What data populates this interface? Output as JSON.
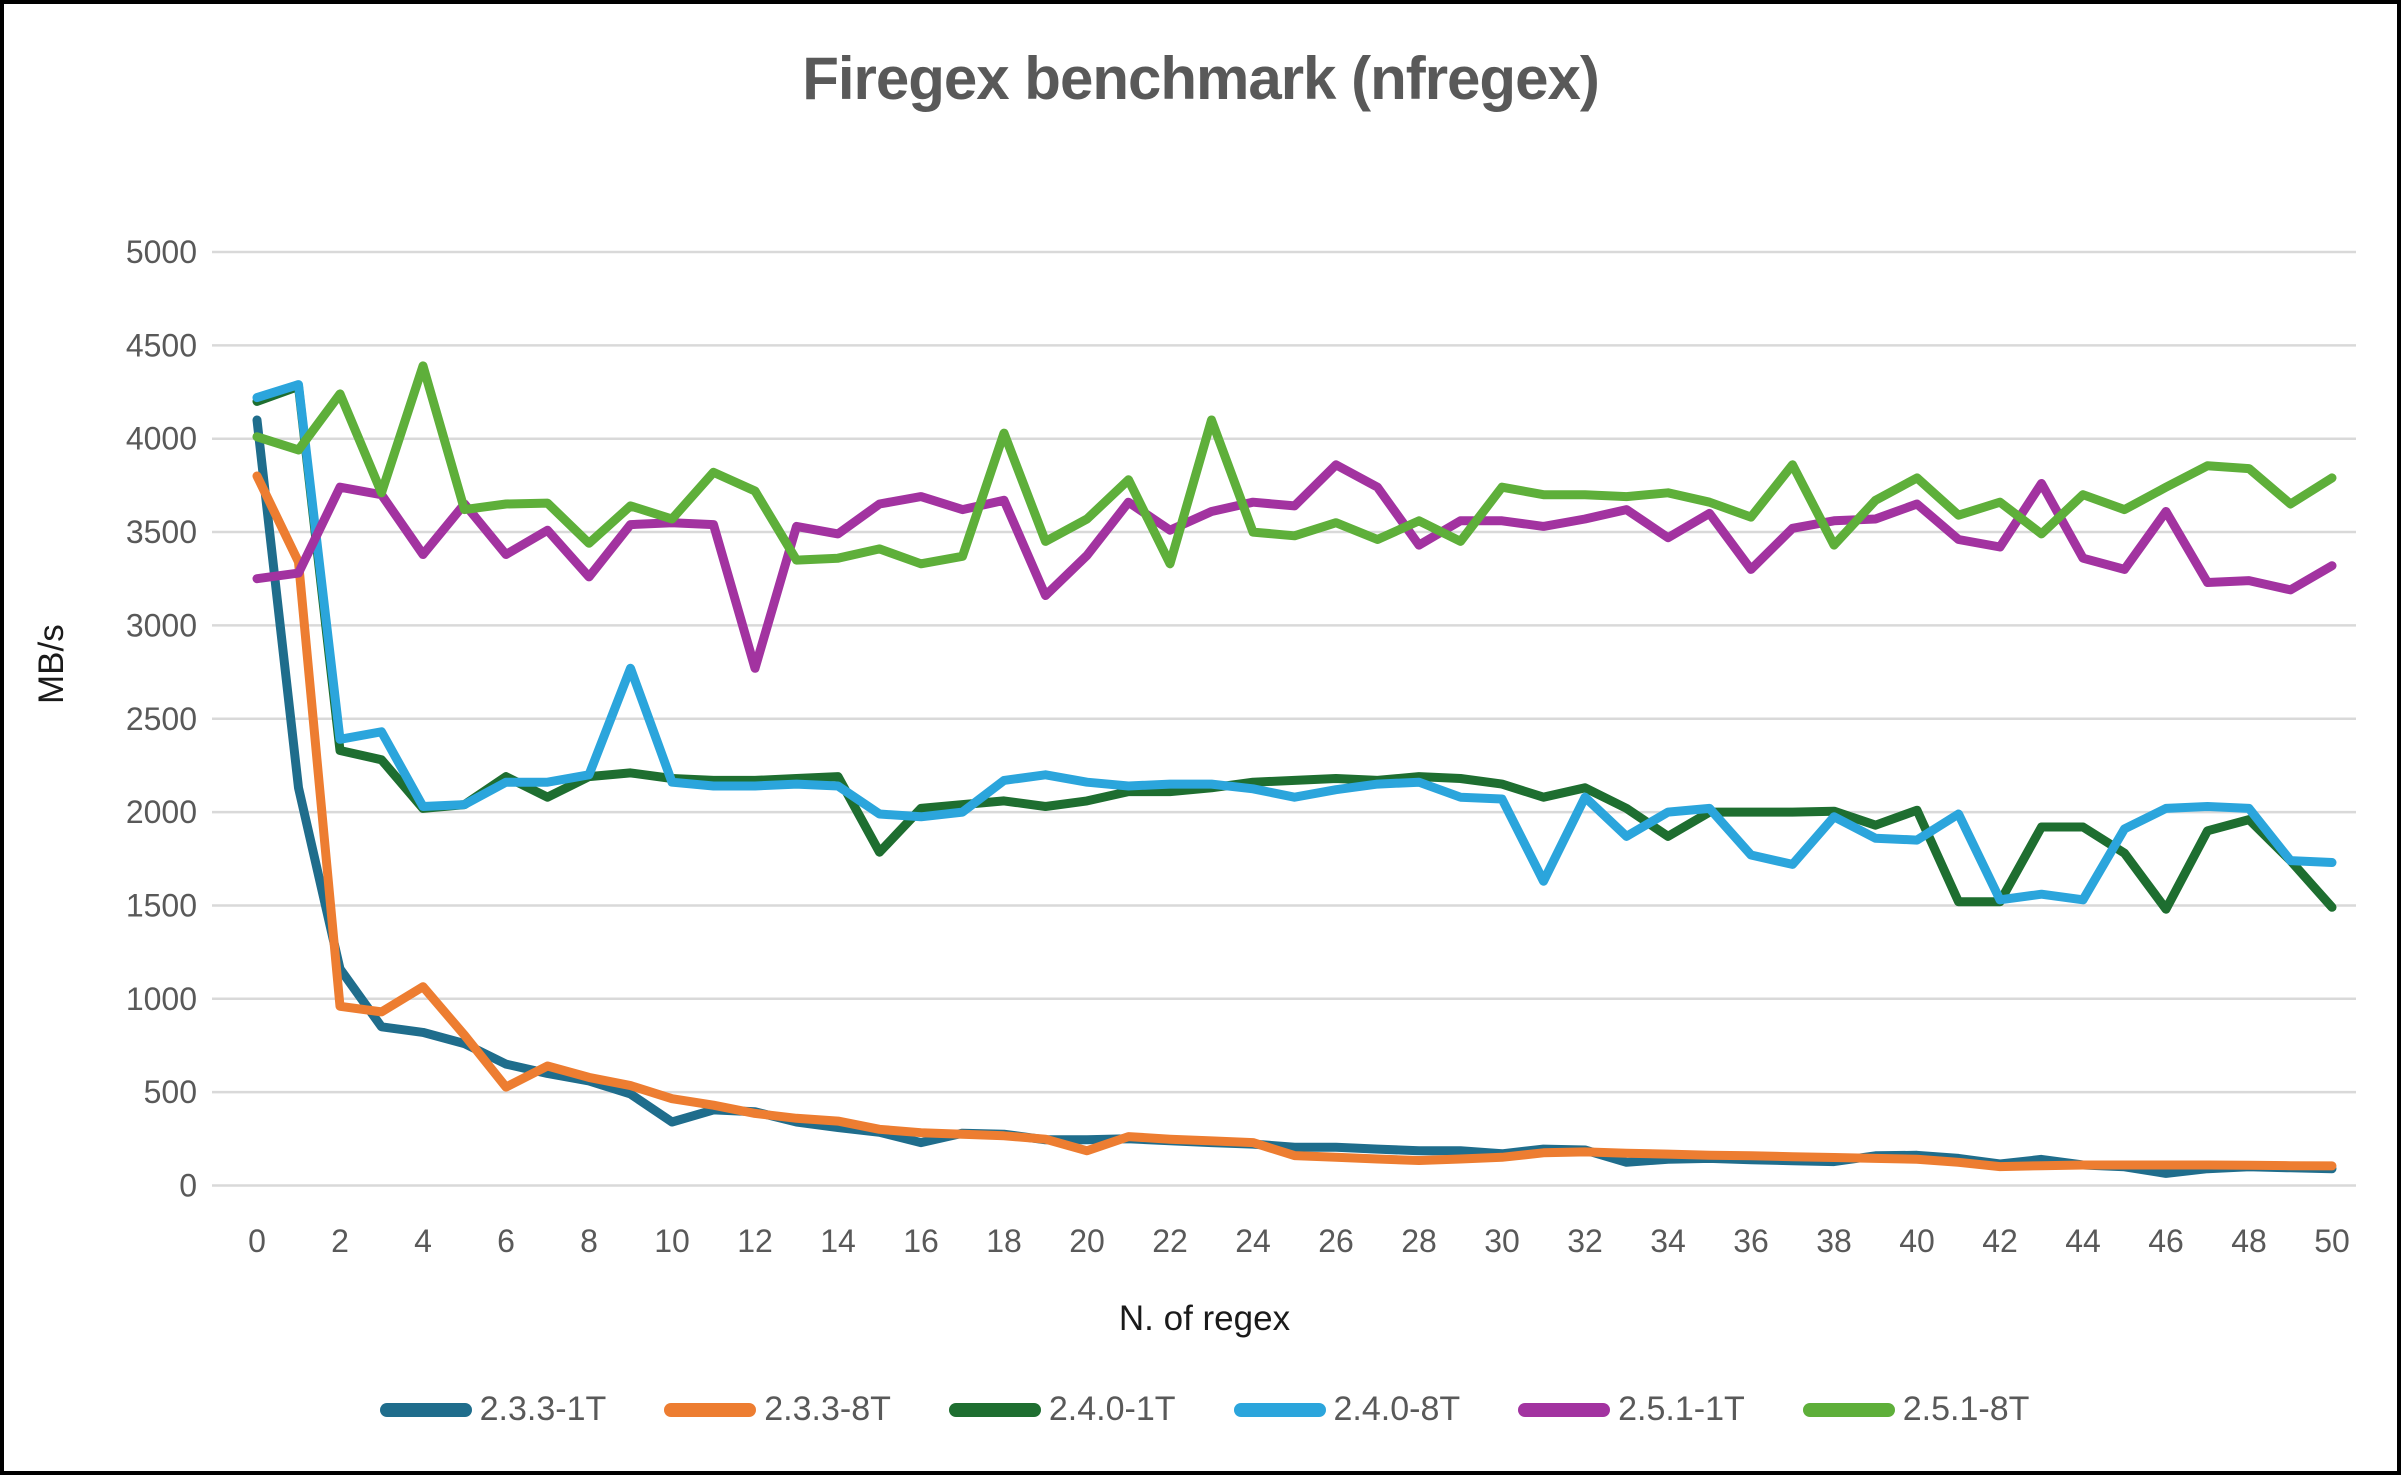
{
  "title": "Firegex benchmark (nfregex)",
  "chart_data": {
    "type": "line",
    "title": "Firegex benchmark (nfregex)",
    "xlabel": "N. of regex",
    "ylabel": "MB/s",
    "x_range": [
      0,
      50
    ],
    "y_range": [
      0,
      5000
    ],
    "grid": "horizontal",
    "legend_position": "bottom",
    "gridline_color": "#D9D9D9",
    "tick_color": "#595959",
    "y_ticks": [
      0,
      500,
      1000,
      1500,
      2000,
      2500,
      3000,
      3500,
      4000,
      4500,
      5000
    ],
    "x_ticks": [
      0,
      2,
      4,
      6,
      8,
      10,
      12,
      14,
      16,
      18,
      20,
      22,
      24,
      26,
      28,
      30,
      32,
      34,
      36,
      38,
      40,
      42,
      44,
      46,
      48,
      50
    ],
    "x": [
      0,
      1,
      2,
      3,
      4,
      5,
      6,
      7,
      8,
      9,
      10,
      11,
      12,
      13,
      14,
      15,
      16,
      17,
      18,
      19,
      20,
      21,
      22,
      23,
      24,
      25,
      26,
      27,
      28,
      29,
      30,
      31,
      32,
      33,
      34,
      35,
      36,
      37,
      38,
      39,
      40,
      41,
      42,
      43,
      44,
      45,
      46,
      47,
      48,
      49,
      50
    ],
    "series": [
      {
        "name": "2.3.3-1T",
        "color": "#1F6D8C",
        "values": [
          4100,
          2130,
          1160,
          850,
          820,
          760,
          650,
          600,
          560,
          490,
          340,
          405,
          395,
          340,
          310,
          285,
          230,
          280,
          275,
          245,
          245,
          250,
          240,
          230,
          222,
          205,
          205,
          195,
          186,
          186,
          170,
          195,
          190,
          124,
          141,
          145,
          138,
          133,
          128,
          159,
          162,
          145,
          115,
          140,
          110,
          100,
          65,
          90,
          100,
          95,
          90
        ]
      },
      {
        "name": "2.3.3-8T",
        "color": "#ED7D31",
        "values": [
          3800,
          3340,
          960,
          930,
          1065,
          805,
          527,
          640,
          579,
          535,
          465,
          430,
          386,
          360,
          345,
          301,
          283,
          274,
          266,
          248,
          186,
          262,
          248,
          239,
          230,
          160,
          151,
          142,
          134,
          142,
          151,
          175,
          180,
          173,
          168,
          162,
          159,
          154,
          150,
          145,
          141,
          124,
          101,
          106,
          110,
          110,
          110,
          110,
          108,
          106,
          105
        ]
      },
      {
        "name": "2.4.0-1T",
        "color": "#1E6E30",
        "values": [
          4200,
          4280,
          2330,
          2280,
          2020,
          2040,
          2190,
          2080,
          2190,
          2210,
          2180,
          2170,
          2170,
          2180,
          2190,
          1785,
          2020,
          2040,
          2060,
          2030,
          2060,
          2110,
          2110,
          2130,
          2160,
          2170,
          2180,
          2170,
          2190,
          2180,
          2150,
          2080,
          2130,
          2020,
          1870,
          2000,
          2000,
          2000,
          2005,
          1930,
          2010,
          1520,
          1520,
          1920,
          1920,
          1780,
          1480,
          1900,
          1960,
          1740,
          1490
        ]
      },
      {
        "name": "2.4.0-8T",
        "color": "#2BA5DC",
        "values": [
          4220,
          4290,
          2390,
          2430,
          2030,
          2040,
          2160,
          2160,
          2200,
          2770,
          2160,
          2140,
          2140,
          2150,
          2140,
          1990,
          1975,
          2000,
          2170,
          2200,
          2160,
          2140,
          2150,
          2150,
          2125,
          2080,
          2120,
          2150,
          2160,
          2080,
          2070,
          1630,
          2080,
          1870,
          2000,
          2020,
          1770,
          1720,
          1975,
          1860,
          1850,
          1990,
          1530,
          1560,
          1530,
          1910,
          2020,
          2030,
          2020,
          1740,
          1730
        ]
      },
      {
        "name": "2.5.1-1T",
        "color": "#A233A0",
        "values": [
          3250,
          3280,
          3740,
          3700,
          3380,
          3650,
          3380,
          3510,
          3260,
          3540,
          3550,
          3540,
          2770,
          3530,
          3490,
          3650,
          3690,
          3620,
          3670,
          3160,
          3375,
          3660,
          3510,
          3610,
          3660,
          3640,
          3860,
          3740,
          3430,
          3560,
          3560,
          3530,
          3570,
          3620,
          3470,
          3600,
          3300,
          3520,
          3560,
          3570,
          3650,
          3460,
          3420,
          3760,
          3360,
          3300,
          3610,
          3230,
          3240,
          3190,
          3320
        ]
      },
      {
        "name": "2.5.1-8T",
        "color": "#5EAF3A",
        "values": [
          4010,
          3940,
          4240,
          3710,
          4390,
          3620,
          3650,
          3655,
          3440,
          3640,
          3570,
          3820,
          3720,
          3350,
          3360,
          3410,
          3330,
          3370,
          4030,
          3450,
          3570,
          3780,
          3330,
          4100,
          3500,
          3480,
          3550,
          3460,
          3560,
          3450,
          3740,
          3700,
          3700,
          3690,
          3710,
          3660,
          3580,
          3860,
          3430,
          3670,
          3790,
          3590,
          3660,
          3490,
          3700,
          3620,
          3740,
          3855,
          3840,
          3650,
          3790
        ]
      }
    ]
  }
}
